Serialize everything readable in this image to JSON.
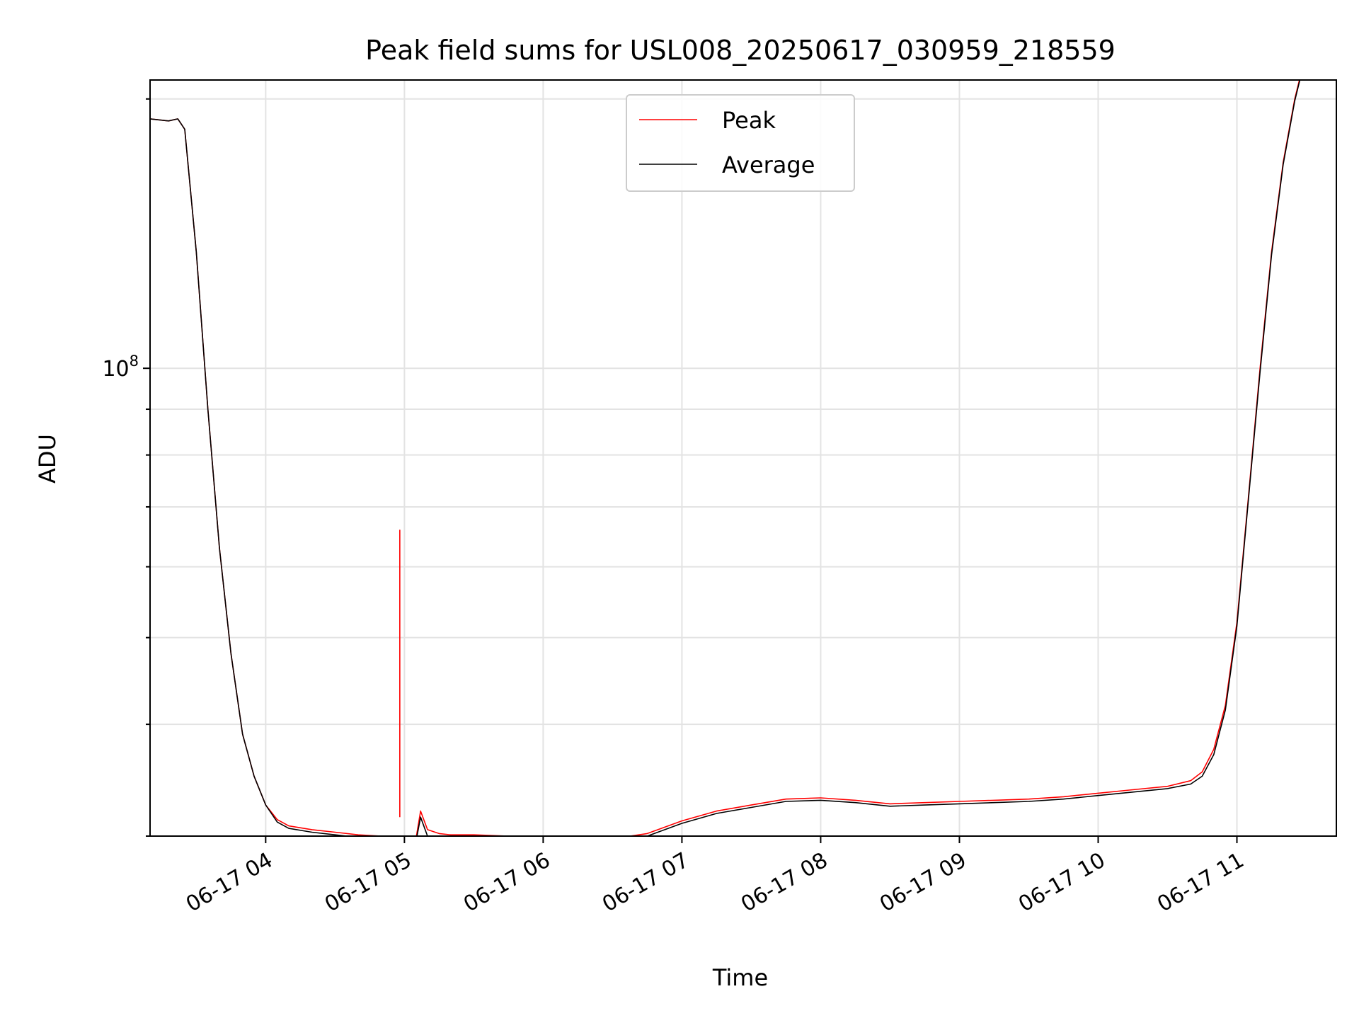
{
  "chart_data": {
    "type": "line",
    "title": "Peak field sums for USL008_20250617_030959_218559",
    "xlabel": "Time",
    "ylabel": "ADU",
    "y_scale": "log",
    "ylim": [
      30000000,
      210000000
    ],
    "xlim": [
      "2025-06-17 03:10",
      "2025-06-17 11:43"
    ],
    "grid": true,
    "legend_position": "top-center",
    "x_ticks": [
      "2025-06-17 04:00",
      "2025-06-17 05:00",
      "2025-06-17 06:00",
      "2025-06-17 07:00",
      "2025-06-17 08:00",
      "2025-06-17 09:00",
      "2025-06-17 10:00",
      "2025-06-17 11:00"
    ],
    "x_tick_labels": [
      "06-17 04",
      "06-17 05",
      "06-17 06",
      "06-17 07",
      "06-17 08",
      "06-17 09",
      "06-17 10",
      "06-17 11"
    ],
    "y_ticks": [
      100000000
    ],
    "y_tick_labels": [
      {
        "base": "10",
        "exp": "8"
      }
    ],
    "x": [
      "2025-06-17 03:10",
      "2025-06-17 03:18",
      "2025-06-17 03:22",
      "2025-06-17 03:25",
      "2025-06-17 03:30",
      "2025-06-17 03:35",
      "2025-06-17 03:40",
      "2025-06-17 03:45",
      "2025-06-17 03:50",
      "2025-06-17 03:55",
      "2025-06-17 04:00",
      "2025-06-17 04:05",
      "2025-06-17 04:10",
      "2025-06-17 04:20",
      "2025-06-17 04:30",
      "2025-06-17 04:40",
      "2025-06-17 04:50",
      "2025-06-17 04:55",
      "2025-06-17 05:00",
      "2025-06-17 05:05",
      "2025-06-17 05:07",
      "2025-06-17 05:10",
      "2025-06-17 05:15",
      "2025-06-17 05:20",
      "2025-06-17 05:30",
      "2025-06-17 05:45",
      "2025-06-17 06:00",
      "2025-06-17 06:15",
      "2025-06-17 06:30",
      "2025-06-17 06:45",
      "2025-06-17 07:00",
      "2025-06-17 07:15",
      "2025-06-17 07:30",
      "2025-06-17 07:45",
      "2025-06-17 08:00",
      "2025-06-17 08:15",
      "2025-06-17 08:30",
      "2025-06-17 08:45",
      "2025-06-17 09:00",
      "2025-06-17 09:15",
      "2025-06-17 09:30",
      "2025-06-17 09:45",
      "2025-06-17 10:00",
      "2025-06-17 10:15",
      "2025-06-17 10:30",
      "2025-06-17 10:40",
      "2025-06-17 10:45",
      "2025-06-17 10:50",
      "2025-06-17 10:55",
      "2025-06-17 11:00",
      "2025-06-17 11:05",
      "2025-06-17 11:10",
      "2025-06-17 11:15",
      "2025-06-17 11:20",
      "2025-06-17 11:25",
      "2025-06-17 11:28",
      "2025-06-17 11:32"
    ],
    "series": [
      {
        "name": "Peak",
        "color": "#ff0000",
        "values": [
          190000000,
          189000000,
          190000000,
          185000000,
          135000000,
          90000000,
          63000000,
          48000000,
          39000000,
          35000000,
          32500000,
          31300000,
          30800000,
          30500000,
          30300000,
          30100000,
          30000000,
          30000000,
          29800000,
          29800000,
          32000000,
          30500000,
          30200000,
          30100000,
          30100000,
          30000000,
          29900000,
          29800000,
          29800000,
          30200000,
          31200000,
          32000000,
          32500000,
          33000000,
          33100000,
          32900000,
          32600000,
          32700000,
          32800000,
          32900000,
          33000000,
          33200000,
          33500000,
          33800000,
          34100000,
          34600000,
          35400000,
          37500000,
          42000000,
          52000000,
          72000000,
          100000000,
          135000000,
          170000000,
          200000000,
          215000000,
          220000000
        ]
      },
      {
        "name": "Average",
        "color": "#000000",
        "values": [
          190000000,
          189000000,
          190000000,
          185000000,
          135000000,
          90000000,
          63000000,
          48000000,
          39000000,
          35000000,
          32500000,
          31100000,
          30600000,
          30300000,
          30100000,
          29900000,
          29800000,
          29700000,
          29600000,
          29600000,
          31500000,
          30000000,
          29700000,
          29800000,
          29900000,
          29800000,
          29700000,
          29600000,
          29600000,
          30000000,
          31000000,
          31800000,
          32300000,
          32800000,
          32900000,
          32700000,
          32400000,
          32500000,
          32600000,
          32700000,
          32800000,
          33000000,
          33300000,
          33600000,
          33900000,
          34300000,
          35000000,
          37000000,
          41500000,
          51500000,
          71500000,
          99000000,
          134000000,
          169000000,
          199000000,
          214000000,
          220000000
        ]
      }
    ],
    "annotations": [
      {
        "type": "spike",
        "series": "Peak",
        "x": "2025-06-17 04:58",
        "value": 66000000
      }
    ]
  }
}
